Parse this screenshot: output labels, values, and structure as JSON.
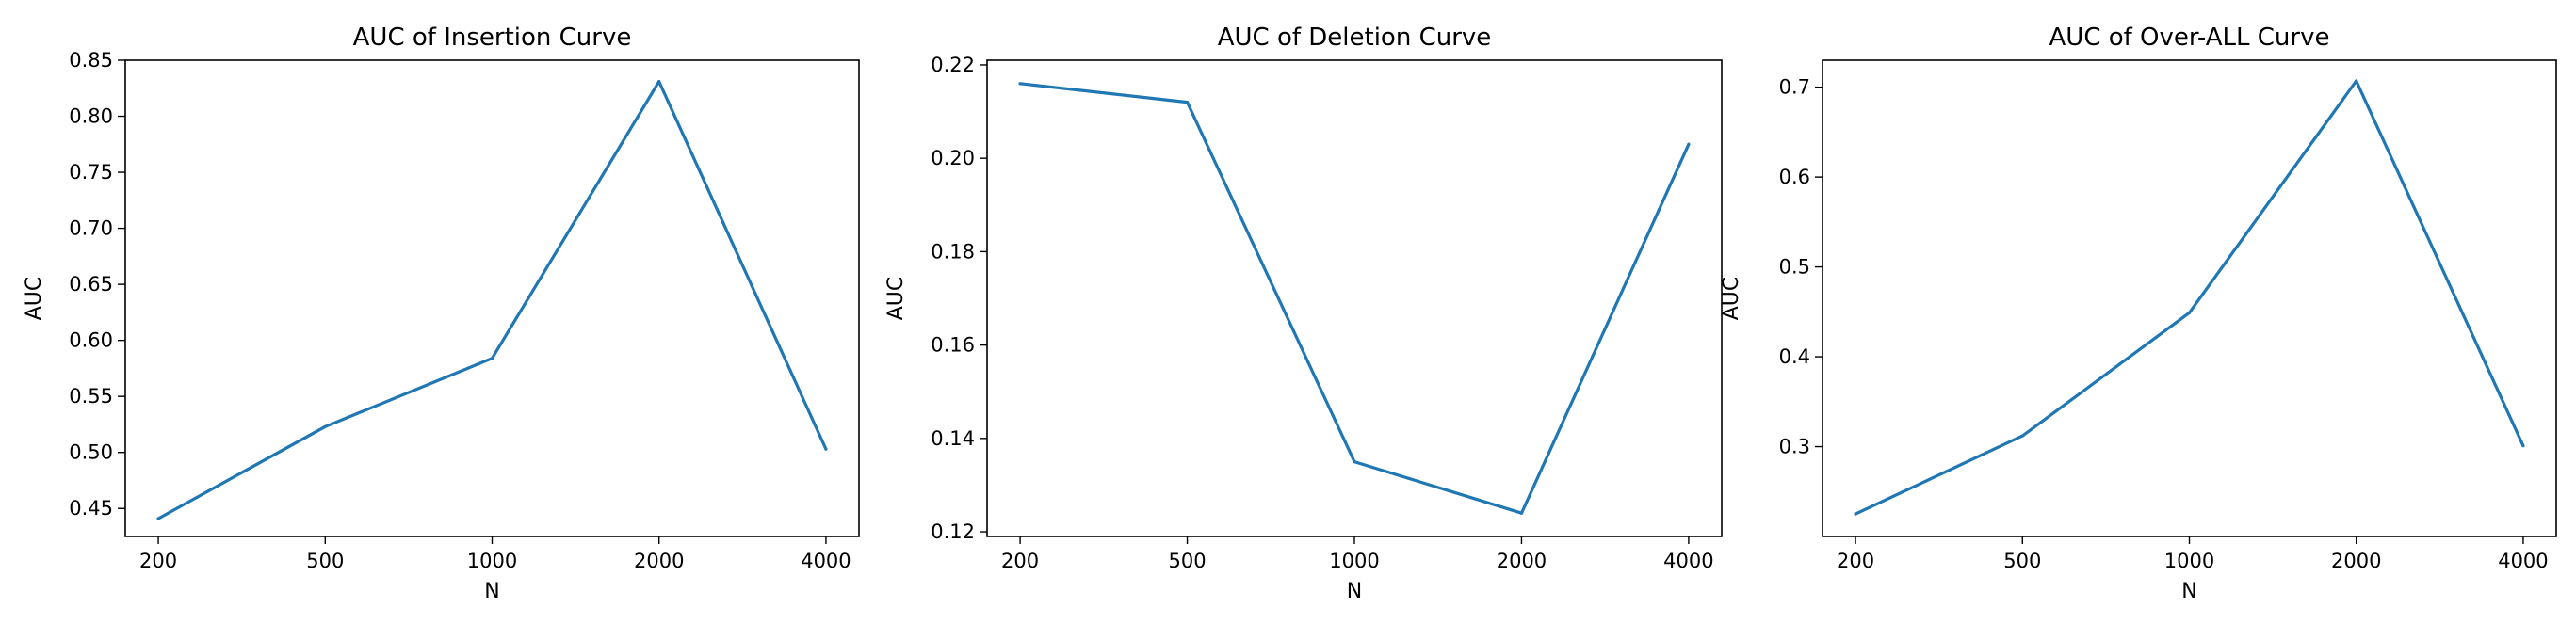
{
  "chart_data": [
    {
      "type": "line",
      "title": "AUC of Insertion Curve",
      "xlabel": "N",
      "ylabel": "AUC",
      "categories": [
        "200",
        "500",
        "1000",
        "2000",
        "4000"
      ],
      "values": [
        0.441,
        0.523,
        0.584,
        0.831,
        0.503
      ],
      "ylim": [
        0.425,
        0.85
      ],
      "yticks": [
        0.45,
        0.5,
        0.55,
        0.6,
        0.65,
        0.7,
        0.75,
        0.8,
        0.85
      ],
      "ytick_labels": [
        "0.45",
        "0.50",
        "0.55",
        "0.60",
        "0.65",
        "0.70",
        "0.75",
        "0.80",
        "0.85"
      ],
      "color": "#1f77b4",
      "grid": false
    },
    {
      "type": "line",
      "title": "AUC of Deletion Curve",
      "xlabel": "N",
      "ylabel": "AUC",
      "categories": [
        "200",
        "500",
        "1000",
        "2000",
        "4000"
      ],
      "values": [
        0.216,
        0.212,
        0.135,
        0.124,
        0.203
      ],
      "ylim": [
        0.119,
        0.221
      ],
      "yticks": [
        0.12,
        0.14,
        0.16,
        0.18,
        0.2,
        0.22
      ],
      "ytick_labels": [
        "0.12",
        "0.14",
        "0.16",
        "0.18",
        "0.20",
        "0.22"
      ],
      "color": "#1f77b4",
      "grid": false
    },
    {
      "type": "line",
      "title": "AUC of Over-ALL Curve",
      "xlabel": "N",
      "ylabel": "AUC",
      "categories": [
        "200",
        "500",
        "1000",
        "2000",
        "4000"
      ],
      "values": [
        0.225,
        0.312,
        0.449,
        0.707,
        0.301
      ],
      "ylim": [
        0.2,
        0.73
      ],
      "yticks": [
        0.3,
        0.4,
        0.5,
        0.6,
        0.7
      ],
      "ytick_labels": [
        "0.3",
        "0.4",
        "0.5",
        "0.6",
        "0.7"
      ],
      "color": "#1f77b4",
      "grid": false
    }
  ]
}
